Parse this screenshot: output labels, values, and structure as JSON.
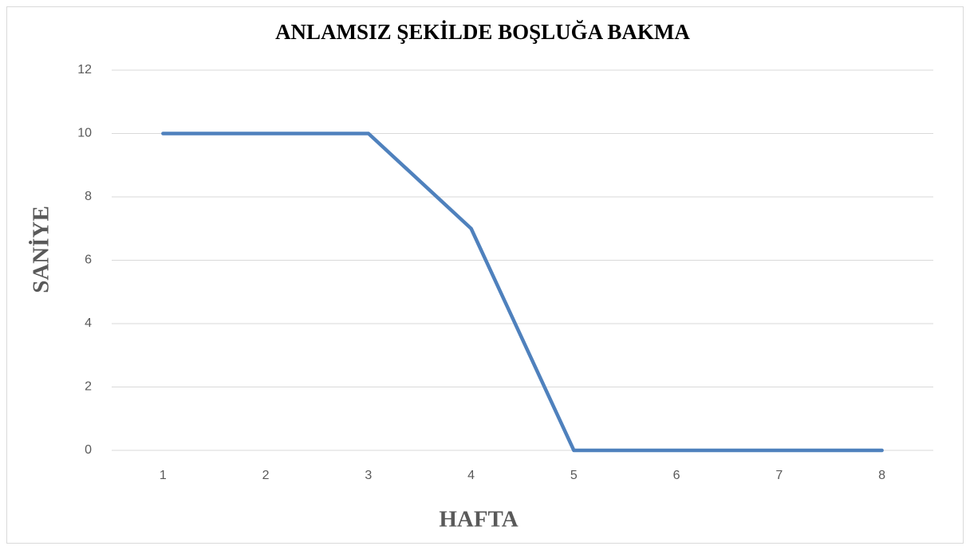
{
  "chart_data": {
    "type": "line",
    "title": "ANLAMSIZ ŞEKİLDE BOŞLUĞA BAKMA",
    "x_label": "HAFTA",
    "y_label": "SANİYE",
    "categories": [
      "1",
      "2",
      "3",
      "4",
      "5",
      "6",
      "7",
      "8"
    ],
    "values": [
      10,
      10,
      10,
      7,
      0,
      0,
      0,
      0
    ],
    "color": "#4f81bd",
    "ylim": [
      0,
      12
    ],
    "yticks": [
      0,
      2,
      4,
      6,
      8,
      10,
      12
    ],
    "grid": true
  }
}
